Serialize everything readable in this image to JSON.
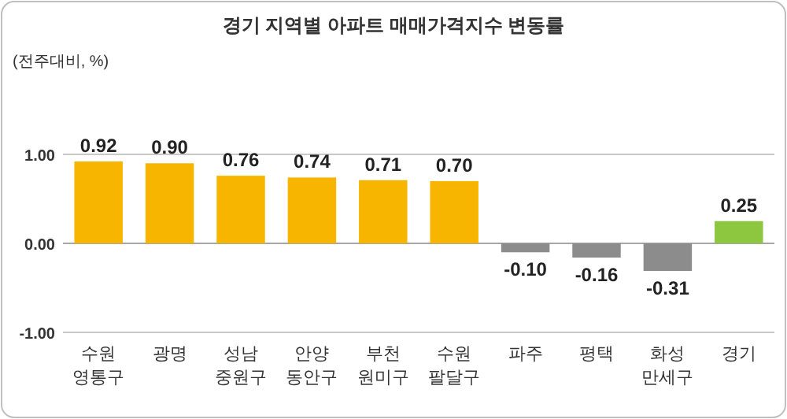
{
  "chart_data": {
    "type": "bar",
    "title": "경기 지역별 아파트 매매가격지수 변동률",
    "ylabel": "(전주대비, %)",
    "categories": [
      "수원\n영통구",
      "광명",
      "성남\n중원구",
      "안양\n동안구",
      "부천\n원미구",
      "수원\n팔달구",
      "파주",
      "평택",
      "화성\n만세구",
      "경기"
    ],
    "values": [
      0.92,
      0.9,
      0.76,
      0.74,
      0.71,
      0.7,
      -0.1,
      -0.16,
      -0.31,
      0.25
    ],
    "colors": [
      "#f7b500",
      "#f7b500",
      "#f7b500",
      "#f7b500",
      "#f7b500",
      "#f7b500",
      "#8c8c8c",
      "#8c8c8c",
      "#8c8c8c",
      "#8dc63f"
    ],
    "value_labels": [
      "0.92",
      "0.90",
      "0.76",
      "0.74",
      "0.71",
      "0.70",
      "-0.10",
      "-0.16",
      "-0.31",
      "0.25"
    ],
    "ylim": [
      -1,
      1
    ],
    "yticks": [
      {
        "value": 1,
        "label": "1.00"
      },
      {
        "value": 0,
        "label": "0.00"
      },
      {
        "value": -1,
        "label": "-1.00"
      }
    ],
    "grid": "y"
  }
}
